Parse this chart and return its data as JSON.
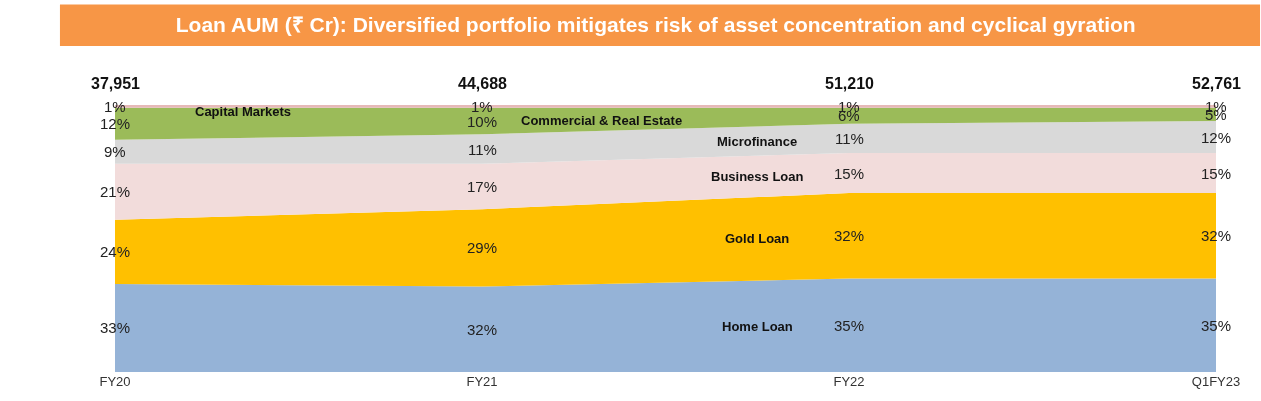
{
  "chart_data": {
    "type": "area",
    "title": "Loan AUM (₹ Cr): Diversified portfolio mitigates risk of asset concentration and cyclical gyration",
    "categories": [
      "FY20",
      "FY21",
      "FY22",
      "Q1FY23"
    ],
    "stacked": true,
    "tick_labels": "x",
    "annotations": [
      "37,951",
      "44,688",
      "51,210",
      "52,761"
    ],
    "series": [
      {
        "name": "Home Loan",
        "color": "#95b3d7",
        "values": [
          33,
          32,
          35,
          35
        ],
        "value_labels": [
          "33%",
          "32%",
          "35%",
          "35%"
        ]
      },
      {
        "name": "Gold Loan",
        "color": "#ffc000",
        "values": [
          24,
          29,
          32,
          32
        ],
        "value_labels": [
          "24%",
          "29%",
          "32%",
          "32%"
        ]
      },
      {
        "name": "Business Loan",
        "color": "#f2dcdb",
        "values": [
          21,
          17,
          15,
          15
        ],
        "value_labels": [
          "21%",
          "17%",
          "15%",
          "15%"
        ]
      },
      {
        "name": "Microfinance",
        "color": "#d9d9d9",
        "values": [
          9,
          11,
          11,
          12
        ],
        "value_labels": [
          "9%",
          "11%",
          "11%",
          "12%"
        ]
      },
      {
        "name": "Commercial & Real Estate",
        "color": "#9bbb59",
        "values": [
          12,
          10,
          6,
          5
        ],
        "value_labels": [
          "12%",
          "10%",
          "6%",
          "5%"
        ]
      },
      {
        "name": "Capital Markets",
        "color": "#e6b9b8",
        "values": [
          1,
          1,
          1,
          1
        ],
        "value_labels": [
          "1%",
          "1%",
          "1%",
          "1%"
        ]
      }
    ]
  }
}
